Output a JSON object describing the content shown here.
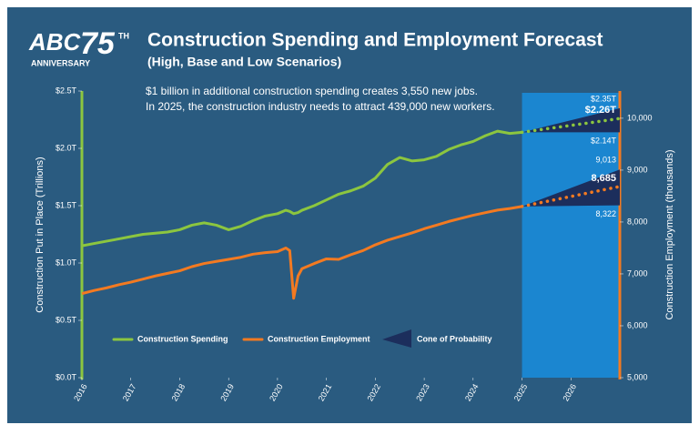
{
  "logo": {
    "brand": "ABC",
    "number": "75",
    "suffix": "TH",
    "caption": "ANNIVERSARY"
  },
  "chart_data": {
    "type": "line",
    "title": "Construction Spending and Employment Forecast",
    "subtitle": "(High, Base and Low Scenarios)",
    "annotations": [
      "$1 billion in additional construction spending creates 3,550 new jobs.",
      "In 2025, the construction industry needs to attract 439,000 new workers."
    ],
    "y_label": "Construction Put in Place (Trillions)",
    "y2_label": "Construction Employment (thousands)",
    "xlim": [
      2016,
      2027
    ],
    "xticks": [
      2016,
      2017,
      2018,
      2019,
      2020,
      2021,
      2022,
      2023,
      2024,
      2025,
      2026
    ],
    "ylim": [
      0,
      2.5
    ],
    "yticks": [
      {
        "value": 0,
        "label": "$0.0T"
      },
      {
        "value": 0.5,
        "label": "$0.5T"
      },
      {
        "value": 1,
        "label": "$1.0T"
      },
      {
        "value": 1.5,
        "label": "$1.5T"
      },
      {
        "value": 2,
        "label": "$2.0T"
      },
      {
        "value": 2.5,
        "label": "$2.5T"
      }
    ],
    "y2lim": [
      5000,
      10525
    ],
    "y2ticks": [
      {
        "value": 5000,
        "label": "5,000"
      },
      {
        "value": 6000,
        "label": "6,000"
      },
      {
        "value": 7000,
        "label": "7,000"
      },
      {
        "value": 8000,
        "label": "8,000"
      },
      {
        "value": 9000,
        "label": "9,000"
      },
      {
        "value": 10000,
        "label": "10,000"
      }
    ],
    "x": [
      2016,
      2016.25,
      2016.5,
      2016.75,
      2017,
      2017.25,
      2017.5,
      2017.75,
      2018,
      2018.25,
      2018.5,
      2018.75,
      2019,
      2019.25,
      2019.5,
      2019.75,
      2020,
      2020.17,
      2020.25,
      2020.33,
      2020.42,
      2020.5,
      2020.75,
      2021,
      2021.25,
      2021.5,
      2021.75,
      2022,
      2022.25,
      2022.5,
      2022.75,
      2023,
      2023.25,
      2023.5,
      2023.75,
      2024,
      2024.25,
      2024.5,
      2024.75,
      2025
    ],
    "forecast_x": [
      2025,
      2027
    ],
    "cone": {
      "name": "Cone of Probability",
      "color": "#1c2e5c",
      "shade_color": "#1b86d0"
    },
    "series": [
      {
        "name": "Construction Spending",
        "color": "#8cc63f",
        "axis": "y",
        "values": [
          1.15,
          1.17,
          1.19,
          1.21,
          1.23,
          1.25,
          1.26,
          1.27,
          1.29,
          1.33,
          1.35,
          1.33,
          1.29,
          1.32,
          1.37,
          1.41,
          1.43,
          1.46,
          1.45,
          1.43,
          1.44,
          1.46,
          1.5,
          1.55,
          1.6,
          1.63,
          1.67,
          1.74,
          1.86,
          1.92,
          1.89,
          1.9,
          1.93,
          1.99,
          2.03,
          2.06,
          2.11,
          2.15,
          2.13,
          2.14
        ],
        "forecast_values": [
          2.14,
          2.26
        ],
        "forecast_high": [
          2.14,
          2.35
        ],
        "forecast_low": [
          2.14,
          2.14
        ],
        "end_labels": {
          "high": "$2.35T",
          "base": "$2.26T",
          "low": "$2.14T"
        }
      },
      {
        "name": "Construction Employment",
        "color": "#f37a21",
        "axis": "y2",
        "values": [
          6620,
          6680,
          6730,
          6790,
          6840,
          6900,
          6960,
          7010,
          7060,
          7140,
          7200,
          7240,
          7280,
          7320,
          7380,
          7410,
          7430,
          7500,
          7450,
          6530,
          6960,
          7100,
          7200,
          7290,
          7280,
          7370,
          7450,
          7560,
          7650,
          7720,
          7790,
          7870,
          7940,
          8010,
          8070,
          8130,
          8180,
          8230,
          8260,
          8300
        ],
        "forecast_values": [
          8300,
          8685
        ],
        "forecast_high": [
          8300,
          9013
        ],
        "forecast_low": [
          8300,
          8322
        ],
        "end_labels": {
          "high": "9,013",
          "base": "8,685",
          "low": "8,322"
        }
      }
    ]
  }
}
